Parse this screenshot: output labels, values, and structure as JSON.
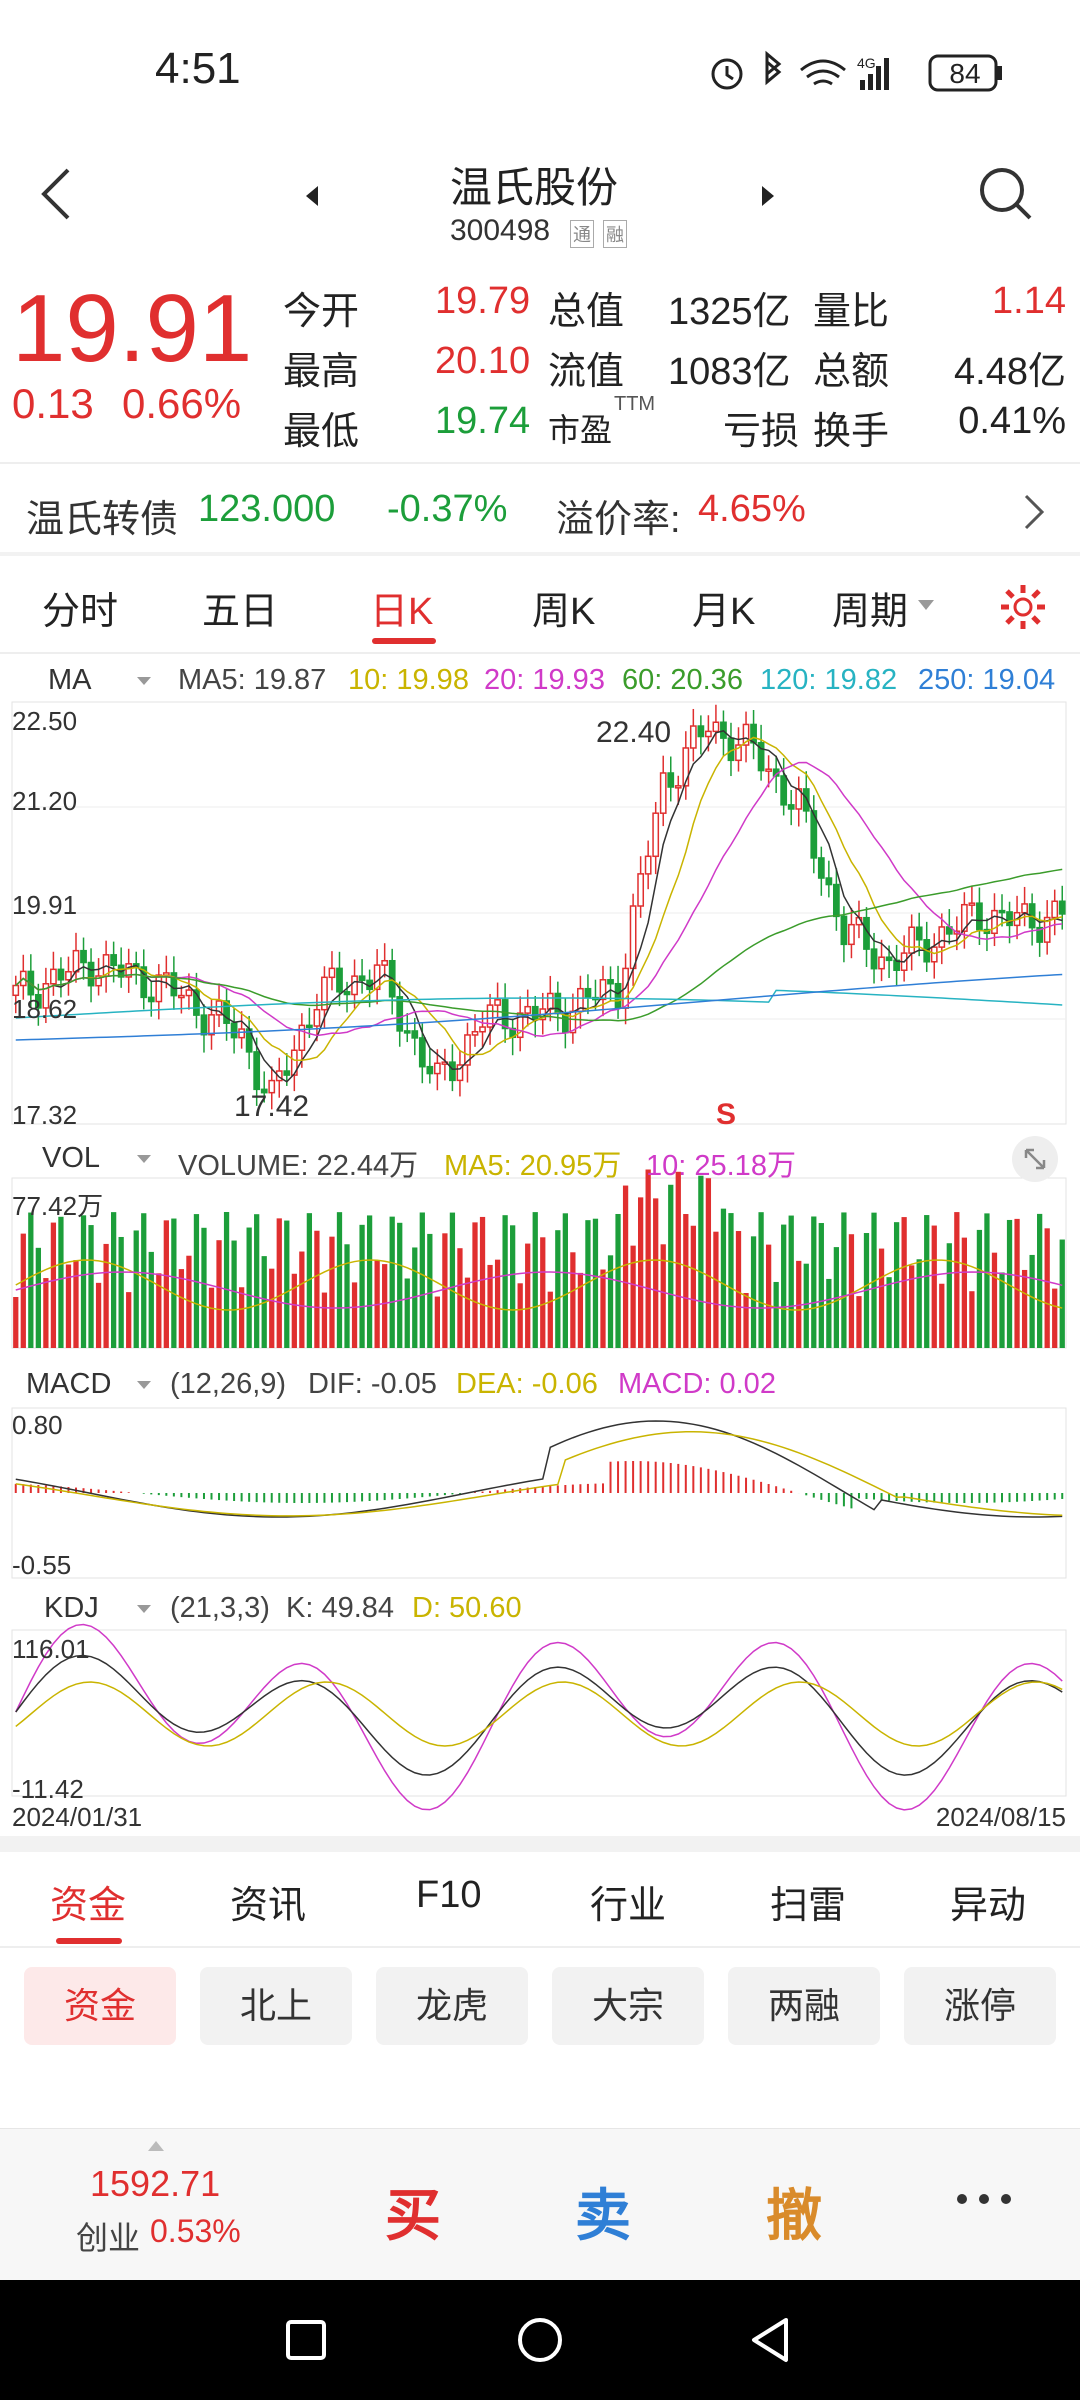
{
  "status_bar": {
    "time": "4:51",
    "battery": "84",
    "network": "4G"
  },
  "header": {
    "stock_name": "温氏股份",
    "stock_code": "300498",
    "badge1": "通",
    "badge2": "融"
  },
  "quote": {
    "price": "19.91",
    "change": "0.13",
    "change_pct": "0.66%",
    "rows": [
      {
        "l1": "今开",
        "v1": "19.79",
        "l2": "总值",
        "v2": "1325亿",
        "l3": "量比",
        "v3": "1.14"
      },
      {
        "l1": "最高",
        "v1": "20.10",
        "l2": "流值",
        "v2": "1083亿",
        "l3": "总额",
        "v3": "4.48亿"
      },
      {
        "l1": "最低",
        "v1": "19.74",
        "l2": "市盈",
        "l2sup": "TTM",
        "v2": "亏损",
        "l3": "换手",
        "v3": "0.41%"
      }
    ]
  },
  "bond": {
    "name": "温氏转债",
    "price": "123.000",
    "change": "-0.37%",
    "premium_label": "溢价率:",
    "premium": "4.65%"
  },
  "period_tabs": [
    "分时",
    "五日",
    "日K",
    "周K",
    "月K",
    "周期"
  ],
  "ma_legend": {
    "name": "MA",
    "ma5": "MA5: 19.87",
    "ma10": "10: 19.98",
    "ma20": "20: 19.93",
    "ma60": "60: 20.36",
    "ma120": "120: 19.82",
    "ma250": "250: 19.04"
  },
  "kline_axis": {
    "top": "22.50",
    "mid": "21.20",
    "cur": "19.91",
    "low_tick": "18.62",
    "bottom": "17.32",
    "high_mark": "22.40",
    "low_mark": "17.42",
    "signal": "S"
  },
  "vol_legend": {
    "name": "VOL",
    "volume": "VOLUME: 22.44万",
    "ma5": "MA5: 20.95万",
    "ma10": "10: 25.18万",
    "max": "77.42万"
  },
  "macd_legend": {
    "name": "MACD",
    "params": "(12,26,9)",
    "dif": "DIF: -0.05",
    "dea": "DEA: -0.06",
    "macd": "MACD: 0.02",
    "top": "0.80",
    "bottom": "-0.55"
  },
  "kdj_legend": {
    "name": "KDJ",
    "params": "(21,3,3)",
    "k": "K: 49.84",
    "d": "D: 50.60",
    "top": "116.01",
    "bottom": "-11.42"
  },
  "date_range": {
    "start": "2024/01/31",
    "end": "2024/08/15"
  },
  "info_tabs": [
    "资金",
    "资讯",
    "F10",
    "行业",
    "扫雷",
    "异动"
  ],
  "sub_tabs": [
    "资金",
    "北上",
    "龙虎",
    "大宗",
    "两融",
    "涨停"
  ],
  "bottom_bar": {
    "index_value": "1592.71",
    "index_name": "创业",
    "index_pct": "0.53%",
    "buy": "买",
    "sell": "卖",
    "cancel": "撤"
  },
  "colors": {
    "up": "#e02f2f",
    "down": "#1c9e3a",
    "ma5": "#333333",
    "ma10": "#c9b400",
    "ma20": "#d03ac8",
    "ma60": "#3b9c2b",
    "ma120": "#27b3c2",
    "ma250": "#2f7fd6"
  }
}
